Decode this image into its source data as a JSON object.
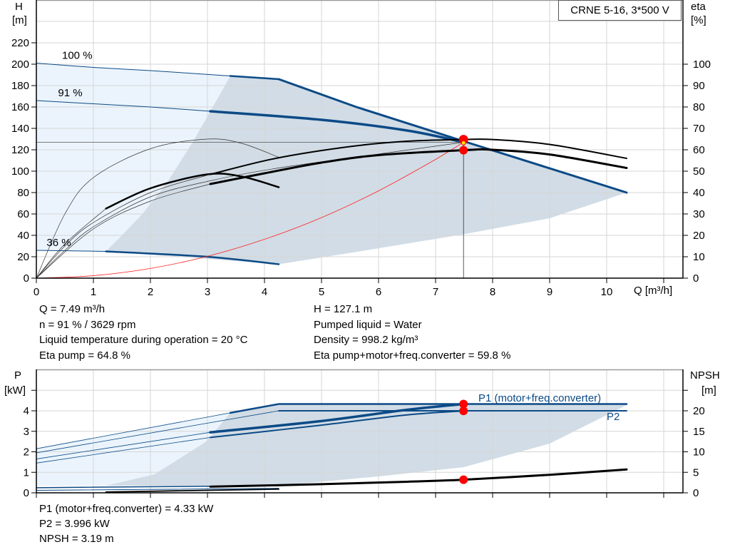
{
  "title": "CRNE 5-16, 3*500 V",
  "chart_data": [
    {
      "type": "line",
      "name_of_panel": "head-efficiency",
      "xlabel": "Q [m³/h]",
      "ylabel_left": [
        "H",
        "[m]"
      ],
      "ylabel_right": [
        "eta",
        "[%]"
      ],
      "xlim": [
        0,
        11.35
      ],
      "ylim_left": [
        0,
        260
      ],
      "ylim_right": [
        0,
        130
      ],
      "grid": true,
      "x_ticks": [
        "0",
        "1",
        "2",
        "3",
        "4",
        "5",
        "6",
        "7",
        "8",
        "9",
        "10"
      ],
      "y_ticks_left": [
        "0",
        "20",
        "40",
        "60",
        "80",
        "100",
        "120",
        "140",
        "160",
        "180",
        "200",
        "220"
      ],
      "y_ticks_right": [
        "0",
        "10",
        "20",
        "30",
        "40",
        "50",
        "60",
        "70",
        "80",
        "90",
        "100"
      ],
      "speed_labels": [
        {
          "text": "100 %",
          "q": 0.45,
          "h": 205
        },
        {
          "text": "91 %",
          "q": 0.38,
          "h": 170
        },
        {
          "text": "36 %",
          "q": 0.18,
          "h": 30
        }
      ],
      "regions": [
        {
          "fill": "#ebf4fc",
          "axis": "left",
          "points": [
            [
              0,
              201
            ],
            [
              3.4,
              189
            ],
            [
              3.2,
              170
            ],
            [
              2.74,
              127
            ],
            [
              2.3,
              90
            ],
            [
              1.86,
              60
            ],
            [
              1.5,
              40
            ],
            [
              1.22,
              25
            ],
            [
              0,
              26
            ]
          ]
        },
        {
          "fill": "#d1dce6",
          "axis": "left",
          "points": [
            [
              3.4,
              189
            ],
            [
              4.25,
              186
            ],
            [
              5.61,
              160
            ],
            [
              7.49,
              128
            ],
            [
              10.35,
              80
            ],
            [
              9,
              56
            ],
            [
              7.49,
              41
            ],
            [
              5.61,
              24.5
            ],
            [
              4.25,
              13
            ],
            [
              1.22,
              25
            ],
            [
              1.5,
              40
            ],
            [
              1.86,
              60
            ],
            [
              2.3,
              90
            ],
            [
              2.74,
              127
            ],
            [
              3.2,
              170
            ]
          ]
        }
      ],
      "series": [
        {
          "axis": "left",
          "color": "#0b4a86",
          "width": 1,
          "points": [
            [
              0,
              201
            ],
            [
              1,
              197
            ],
            [
              2,
              194
            ],
            [
              3.4,
              189
            ]
          ]
        },
        {
          "axis": "left",
          "color": "#0b4a86",
          "width": 2.5,
          "points": [
            [
              3.4,
              189
            ],
            [
              4.25,
              186
            ]
          ]
        },
        {
          "axis": "left",
          "color": "#0b4a86",
          "width": 3,
          "smooth": false,
          "points": [
            [
              4.25,
              186
            ],
            [
              5.61,
              160
            ],
            [
              7.49,
              128
            ],
            [
              10.35,
              80
            ]
          ]
        },
        {
          "axis": "left",
          "color": "#0b4a86",
          "width": 1,
          "points": [
            [
              0,
              166
            ],
            [
              1,
              163
            ],
            [
              2,
              160
            ],
            [
              3.05,
              156
            ]
          ]
        },
        {
          "axis": "left",
          "color": "#0b4a86",
          "width": 3.5,
          "points": [
            [
              3.05,
              156
            ],
            [
              5,
              148
            ],
            [
              6.5,
              138
            ],
            [
              7.49,
              127.1
            ]
          ]
        },
        {
          "axis": "left",
          "color": "#0b4a86",
          "width": 1,
          "points": [
            [
              0,
              26
            ],
            [
              1.22,
              25
            ]
          ]
        },
        {
          "axis": "left",
          "color": "#0b4a86",
          "width": 2.5,
          "points": [
            [
              1.22,
              25
            ],
            [
              3,
              20
            ],
            [
              4.25,
              13
            ]
          ]
        },
        {
          "axis": "left",
          "color": "#ff2020",
          "width": 0.8,
          "points": [
            [
              0,
              0
            ],
            [
              1,
              2.3
            ],
            [
              2,
              9.1
            ],
            [
              3,
              20.4
            ],
            [
              4,
              36.3
            ],
            [
              5,
              56.6
            ],
            [
              6,
              81.6
            ],
            [
              7,
              111
            ],
            [
              7.49,
              127.1
            ]
          ]
        },
        {
          "axis": "right",
          "color": "#333",
          "width": 0.7,
          "points": [
            [
              0,
              0
            ],
            [
              0.5,
              30
            ],
            [
              1,
              47
            ],
            [
              2,
              60.5
            ],
            [
              3,
              65
            ],
            [
              3.6,
              63
            ],
            [
              4.25,
              56.5
            ]
          ]
        },
        {
          "axis": "right",
          "color": "#333",
          "width": 0.7,
          "points": [
            [
              0,
              0
            ],
            [
              0.5,
              16
            ],
            [
              1.22,
              32.5
            ]
          ]
        },
        {
          "axis": "right",
          "color": "#000",
          "width": 2.5,
          "points": [
            [
              1.22,
              32.5
            ],
            [
              2,
              42
            ],
            [
              3,
              48.5
            ],
            [
              3.6,
              47.5
            ],
            [
              4.25,
              42.5
            ]
          ]
        },
        {
          "axis": "right",
          "color": "#333",
          "width": 0.7,
          "points": [
            [
              0,
              0
            ],
            [
              0.5,
              15
            ],
            [
              1,
              26
            ],
            [
              2,
              40
            ],
            [
              3.05,
              48.5
            ]
          ]
        },
        {
          "axis": "right",
          "color": "#333",
          "width": 0.7,
          "points": [
            [
              0,
              0
            ],
            [
              0.5,
              13
            ],
            [
              1,
              24
            ],
            [
              2,
              38
            ],
            [
              3.05,
              45.5
            ],
            [
              4.25,
              51.5
            ],
            [
              6,
              58
            ],
            [
              7.49,
              63.5
            ]
          ]
        },
        {
          "axis": "right",
          "color": "#000",
          "width": 2,
          "points": [
            [
              3.05,
              48.5
            ],
            [
              4.2,
              56
            ],
            [
              5.5,
              61.5
            ],
            [
              6.5,
              64
            ],
            [
              7.49,
              64.8
            ],
            [
              8,
              64.8
            ],
            [
              9,
              62.5
            ],
            [
              10.35,
              56
            ]
          ]
        },
        {
          "axis": "right",
          "color": "#333",
          "width": 0.7,
          "points": [
            [
              0,
              0
            ],
            [
              1,
              23
            ],
            [
              2,
              36
            ],
            [
              3.05,
              44
            ]
          ]
        },
        {
          "axis": "right",
          "color": "#000",
          "width": 3,
          "points": [
            [
              3.05,
              44
            ],
            [
              4,
              49
            ],
            [
              5,
              54
            ],
            [
              6,
              57.5
            ],
            [
              7.49,
              59.8
            ],
            [
              8,
              60
            ],
            [
              9,
              57.8
            ],
            [
              10.35,
              51.5
            ]
          ]
        }
      ],
      "duty_point": {
        "q": 7.49,
        "h": 127.1,
        "eta_pump": 64.8,
        "eta_total": 59.8
      }
    },
    {
      "type": "line",
      "name_of_panel": "power-npsh",
      "ylabel_left": [
        "P",
        "[kW]"
      ],
      "ylabel_right": [
        "NPSH",
        "[m]"
      ],
      "xlim": [
        0,
        11.35
      ],
      "ylim_left": [
        0,
        6
      ],
      "ylim_right": [
        0,
        30
      ],
      "grid": true,
      "y_ticks_left": [
        "0",
        "1",
        "2",
        "3",
        "4",
        ""
      ],
      "y_ticks_right": [
        "0",
        "5",
        "10",
        "15",
        "20",
        ""
      ],
      "series_labels": [
        {
          "text": "P1 (motor+freq.converter)",
          "q": 7.75,
          "p": 4.45
        },
        {
          "text": "P2",
          "q": 10.0,
          "p": 3.55
        }
      ],
      "regions": [
        {
          "fill": "#ebf4fc",
          "axis": "left",
          "points": [
            [
              0,
              2.15
            ],
            [
              3.4,
              3.9
            ],
            [
              2.98,
              2.5
            ],
            [
              2.07,
              0.9
            ],
            [
              1.22,
              0.35
            ],
            [
              0,
              0.35
            ]
          ]
        },
        {
          "fill": "#d1dce6",
          "axis": "left",
          "points": [
            [
              3.4,
              3.9
            ],
            [
              4.25,
              4.33
            ],
            [
              10.35,
              4.33
            ],
            [
              10.35,
              4.28
            ],
            [
              9,
              2.4
            ],
            [
              7.49,
              1.25
            ],
            [
              6,
              0.8
            ],
            [
              4.25,
              0.35
            ],
            [
              1.22,
              0.35
            ],
            [
              2.07,
              0.9
            ],
            [
              2.98,
              2.5
            ]
          ]
        }
      ],
      "series": [
        {
          "axis": "left",
          "color": "#0b4a86",
          "width": 0.8,
          "smooth": false,
          "points": [
            [
              0,
              2.15
            ],
            [
              3.4,
              3.9
            ]
          ]
        },
        {
          "axis": "left",
          "color": "#0b4a86",
          "width": 2.5,
          "smooth": false,
          "points": [
            [
              3.4,
              3.9
            ],
            [
              4.25,
              4.33
            ],
            [
              10.35,
              4.33
            ]
          ]
        },
        {
          "axis": "left",
          "color": "#0b4a86",
          "width": 0.8,
          "smooth": false,
          "points": [
            [
              0,
              1.95
            ],
            [
              4.25,
              4.0
            ]
          ]
        },
        {
          "axis": "left",
          "color": "#0b4a86",
          "width": 2,
          "smooth": false,
          "points": [
            [
              4.25,
              4.0
            ],
            [
              10.35,
              4.0
            ]
          ]
        },
        {
          "axis": "left",
          "color": "#0b4a86",
          "width": 0.8,
          "points": [
            [
              0,
              1.65
            ],
            [
              3.05,
              2.95
            ]
          ]
        },
        {
          "axis": "left",
          "color": "#0b4a86",
          "width": 3.5,
          "points": [
            [
              3.05,
              2.95
            ],
            [
              5,
              3.5
            ],
            [
              6.5,
              4.05
            ],
            [
              7.49,
              4.33
            ]
          ]
        },
        {
          "axis": "left",
          "color": "#0b4a86",
          "width": 0.8,
          "points": [
            [
              0,
              1.45
            ],
            [
              3.05,
              2.7
            ]
          ]
        },
        {
          "axis": "left",
          "color": "#0b4a86",
          "width": 2,
          "points": [
            [
              3.05,
              2.7
            ],
            [
              5,
              3.3
            ],
            [
              6.5,
              3.8
            ],
            [
              7.49,
              3.996
            ]
          ]
        },
        {
          "axis": "left",
          "color": "#0b4a86",
          "width": 1.5,
          "smooth": false,
          "points": [
            [
              0,
              0.25
            ],
            [
              4.25,
              0.35
            ]
          ]
        },
        {
          "axis": "left",
          "color": "#0b4a86",
          "width": 1,
          "smooth": false,
          "points": [
            [
              0,
              0.12
            ],
            [
              4.25,
              0.22
            ]
          ]
        },
        {
          "axis": "right",
          "color": "#000",
          "width": 1.8,
          "smooth": false,
          "points": [
            [
              1.22,
              0.2
            ],
            [
              4.25,
              0.9
            ]
          ]
        },
        {
          "axis": "right",
          "color": "#000",
          "width": 3,
          "points": [
            [
              3.05,
              1.5
            ],
            [
              5,
              2.1
            ],
            [
              6.5,
              2.7
            ],
            [
              7.49,
              3.19
            ],
            [
              9,
              4.4
            ],
            [
              10.35,
              5.7
            ]
          ]
        }
      ],
      "duty_point": {
        "q": 7.49,
        "p1": 4.33,
        "p2": 3.996,
        "npsh": 3.19
      }
    }
  ],
  "results_top": {
    "left": [
      "Q = 7.49 m³/h",
      "n = 91 % / 3629 rpm",
      "Liquid temperature during operation = 20 °C",
      "Eta pump = 64.8 %"
    ],
    "right": [
      "H = 127.1 m",
      "Pumped liquid = Water",
      "Density = 998.2 kg/m³",
      "Eta pump+motor+freq.converter = 59.8 %"
    ]
  },
  "results_bottom": [
    "P1 (motor+freq.converter) = 4.33 kW",
    "P2 = 3.996 kW",
    "NPSH = 3.19 m"
  ],
  "colors": {
    "curve_blue": "#0b4a86",
    "area_dark": "#d1dce6",
    "area_light": "#ebf4fc",
    "duty_point": "#ff0000",
    "system_curve": "#ff2020"
  }
}
